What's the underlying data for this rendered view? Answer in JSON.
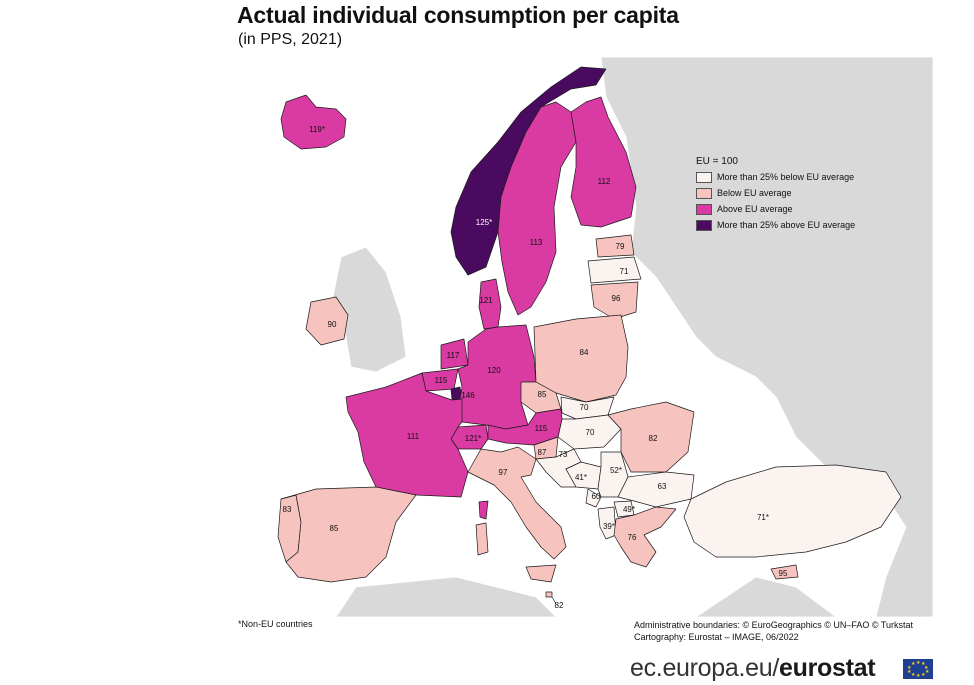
{
  "title": "Actual individual consumption per capita",
  "subtitle": "(in PPS, 2021)",
  "legend": {
    "title": "EU = 100",
    "items": [
      {
        "label": "More than 25% below EU average",
        "color": "#fbf3f0"
      },
      {
        "label": "Below EU average",
        "color": "#f6c3be"
      },
      {
        "label": "Above EU average",
        "color": "#d93ba3"
      },
      {
        "label": "More than 25% above EU average",
        "color": "#4a0a5f"
      }
    ]
  },
  "colors": {
    "sea": "#ffffff",
    "non_data": "#d9d9d9",
    "border": "#1a1a1a"
  },
  "regions": {
    "iceland": "119*",
    "norway": "125*",
    "sweden": "113",
    "finland": "112",
    "estonia": "79",
    "latvia": "71",
    "lithuania": "96",
    "denmark": "121",
    "ireland": "90",
    "netherlands": "117",
    "belgium": "115",
    "luxembourg": "146",
    "germany": "120",
    "poland": "84",
    "czechia": "85",
    "slovakia": "70",
    "hungary": "70",
    "austria": "115",
    "switzerland": "121*",
    "slovenia": "87",
    "france": "111",
    "croatia": "73",
    "bosnia": "41*",
    "serbia": "52*",
    "montenegro": "60",
    "north_macedonia": "49*",
    "albania": "39*",
    "romania": "82",
    "bulgaria": "63",
    "greece": "76",
    "turkey": "71*",
    "cyprus": "95",
    "italy": "97",
    "portugal": "83",
    "spain": "85",
    "malta": "82"
  },
  "footnote": "*Non-EU countries",
  "credits": {
    "line1": "Administrative boundaries: © EuroGeographics © UN–FAO © Turkstat",
    "line2": "Cartography: Eurostat – IMAGE, 06/2022"
  },
  "brand": {
    "prefix": "ec.europa.eu/",
    "name": "eurostat"
  }
}
